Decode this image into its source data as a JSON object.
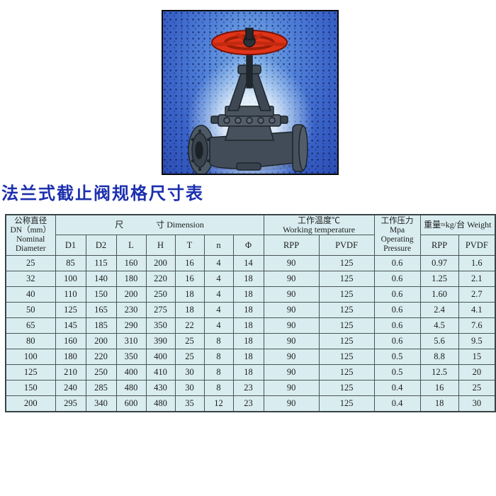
{
  "title": "法兰式截止阀规格尺寸表",
  "photo": {
    "subject": "flanged-globe-valve-product-photo",
    "colors": {
      "background_blue": "#3a63c8",
      "glow_white": "#ffffff",
      "handwheel_red": "#e03418",
      "valve_body_gray": "#47525e"
    }
  },
  "table": {
    "header": {
      "nominal_diameter": [
        "公称直径",
        "DN（mm）",
        "Nominal",
        "Diameter"
      ],
      "dimension_left": "尺",
      "dimension_right": "寸 Dimension",
      "dimension_cols": [
        "D1",
        "D2",
        "L",
        "H",
        "T",
        "n",
        "Φ"
      ],
      "working_temperature": [
        "工作温度℃",
        "Working temperature"
      ],
      "temp_cols": [
        "RPP",
        "PVDF"
      ],
      "operating_pressure": [
        "工作压力Mpa",
        "Operating",
        "Pressure"
      ],
      "weight": "重量≈kg/台 Weight",
      "weight_cols": [
        "RPP",
        "PVDF"
      ]
    },
    "rows": [
      [
        "25",
        "85",
        "115",
        "160",
        "200",
        "16",
        "4",
        "14",
        "90",
        "125",
        "0.6",
        "0.97",
        "1.6"
      ],
      [
        "32",
        "100",
        "140",
        "180",
        "220",
        "16",
        "4",
        "18",
        "90",
        "125",
        "0.6",
        "1.25",
        "2.1"
      ],
      [
        "40",
        "110",
        "150",
        "200",
        "250",
        "18",
        "4",
        "18",
        "90",
        "125",
        "0.6",
        "1.60",
        "2.7"
      ],
      [
        "50",
        "125",
        "165",
        "230",
        "275",
        "18",
        "4",
        "18",
        "90",
        "125",
        "0.6",
        "2.4",
        "4.1"
      ],
      [
        "65",
        "145",
        "185",
        "290",
        "350",
        "22",
        "4",
        "18",
        "90",
        "125",
        "0.6",
        "4.5",
        "7.6"
      ],
      [
        "80",
        "160",
        "200",
        "310",
        "390",
        "25",
        "8",
        "18",
        "90",
        "125",
        "0.6",
        "5.6",
        "9.5"
      ],
      [
        "100",
        "180",
        "220",
        "350",
        "400",
        "25",
        "8",
        "18",
        "90",
        "125",
        "0.5",
        "8.8",
        "15"
      ],
      [
        "125",
        "210",
        "250",
        "400",
        "410",
        "30",
        "8",
        "18",
        "90",
        "125",
        "0.5",
        "12.5",
        "20"
      ],
      [
        "150",
        "240",
        "285",
        "480",
        "430",
        "30",
        "8",
        "23",
        "90",
        "125",
        "0.4",
        "16",
        "25"
      ],
      [
        "200",
        "295",
        "340",
        "600",
        "480",
        "35",
        "12",
        "23",
        "90",
        "125",
        "0.4",
        "18",
        "30"
      ]
    ]
  }
}
